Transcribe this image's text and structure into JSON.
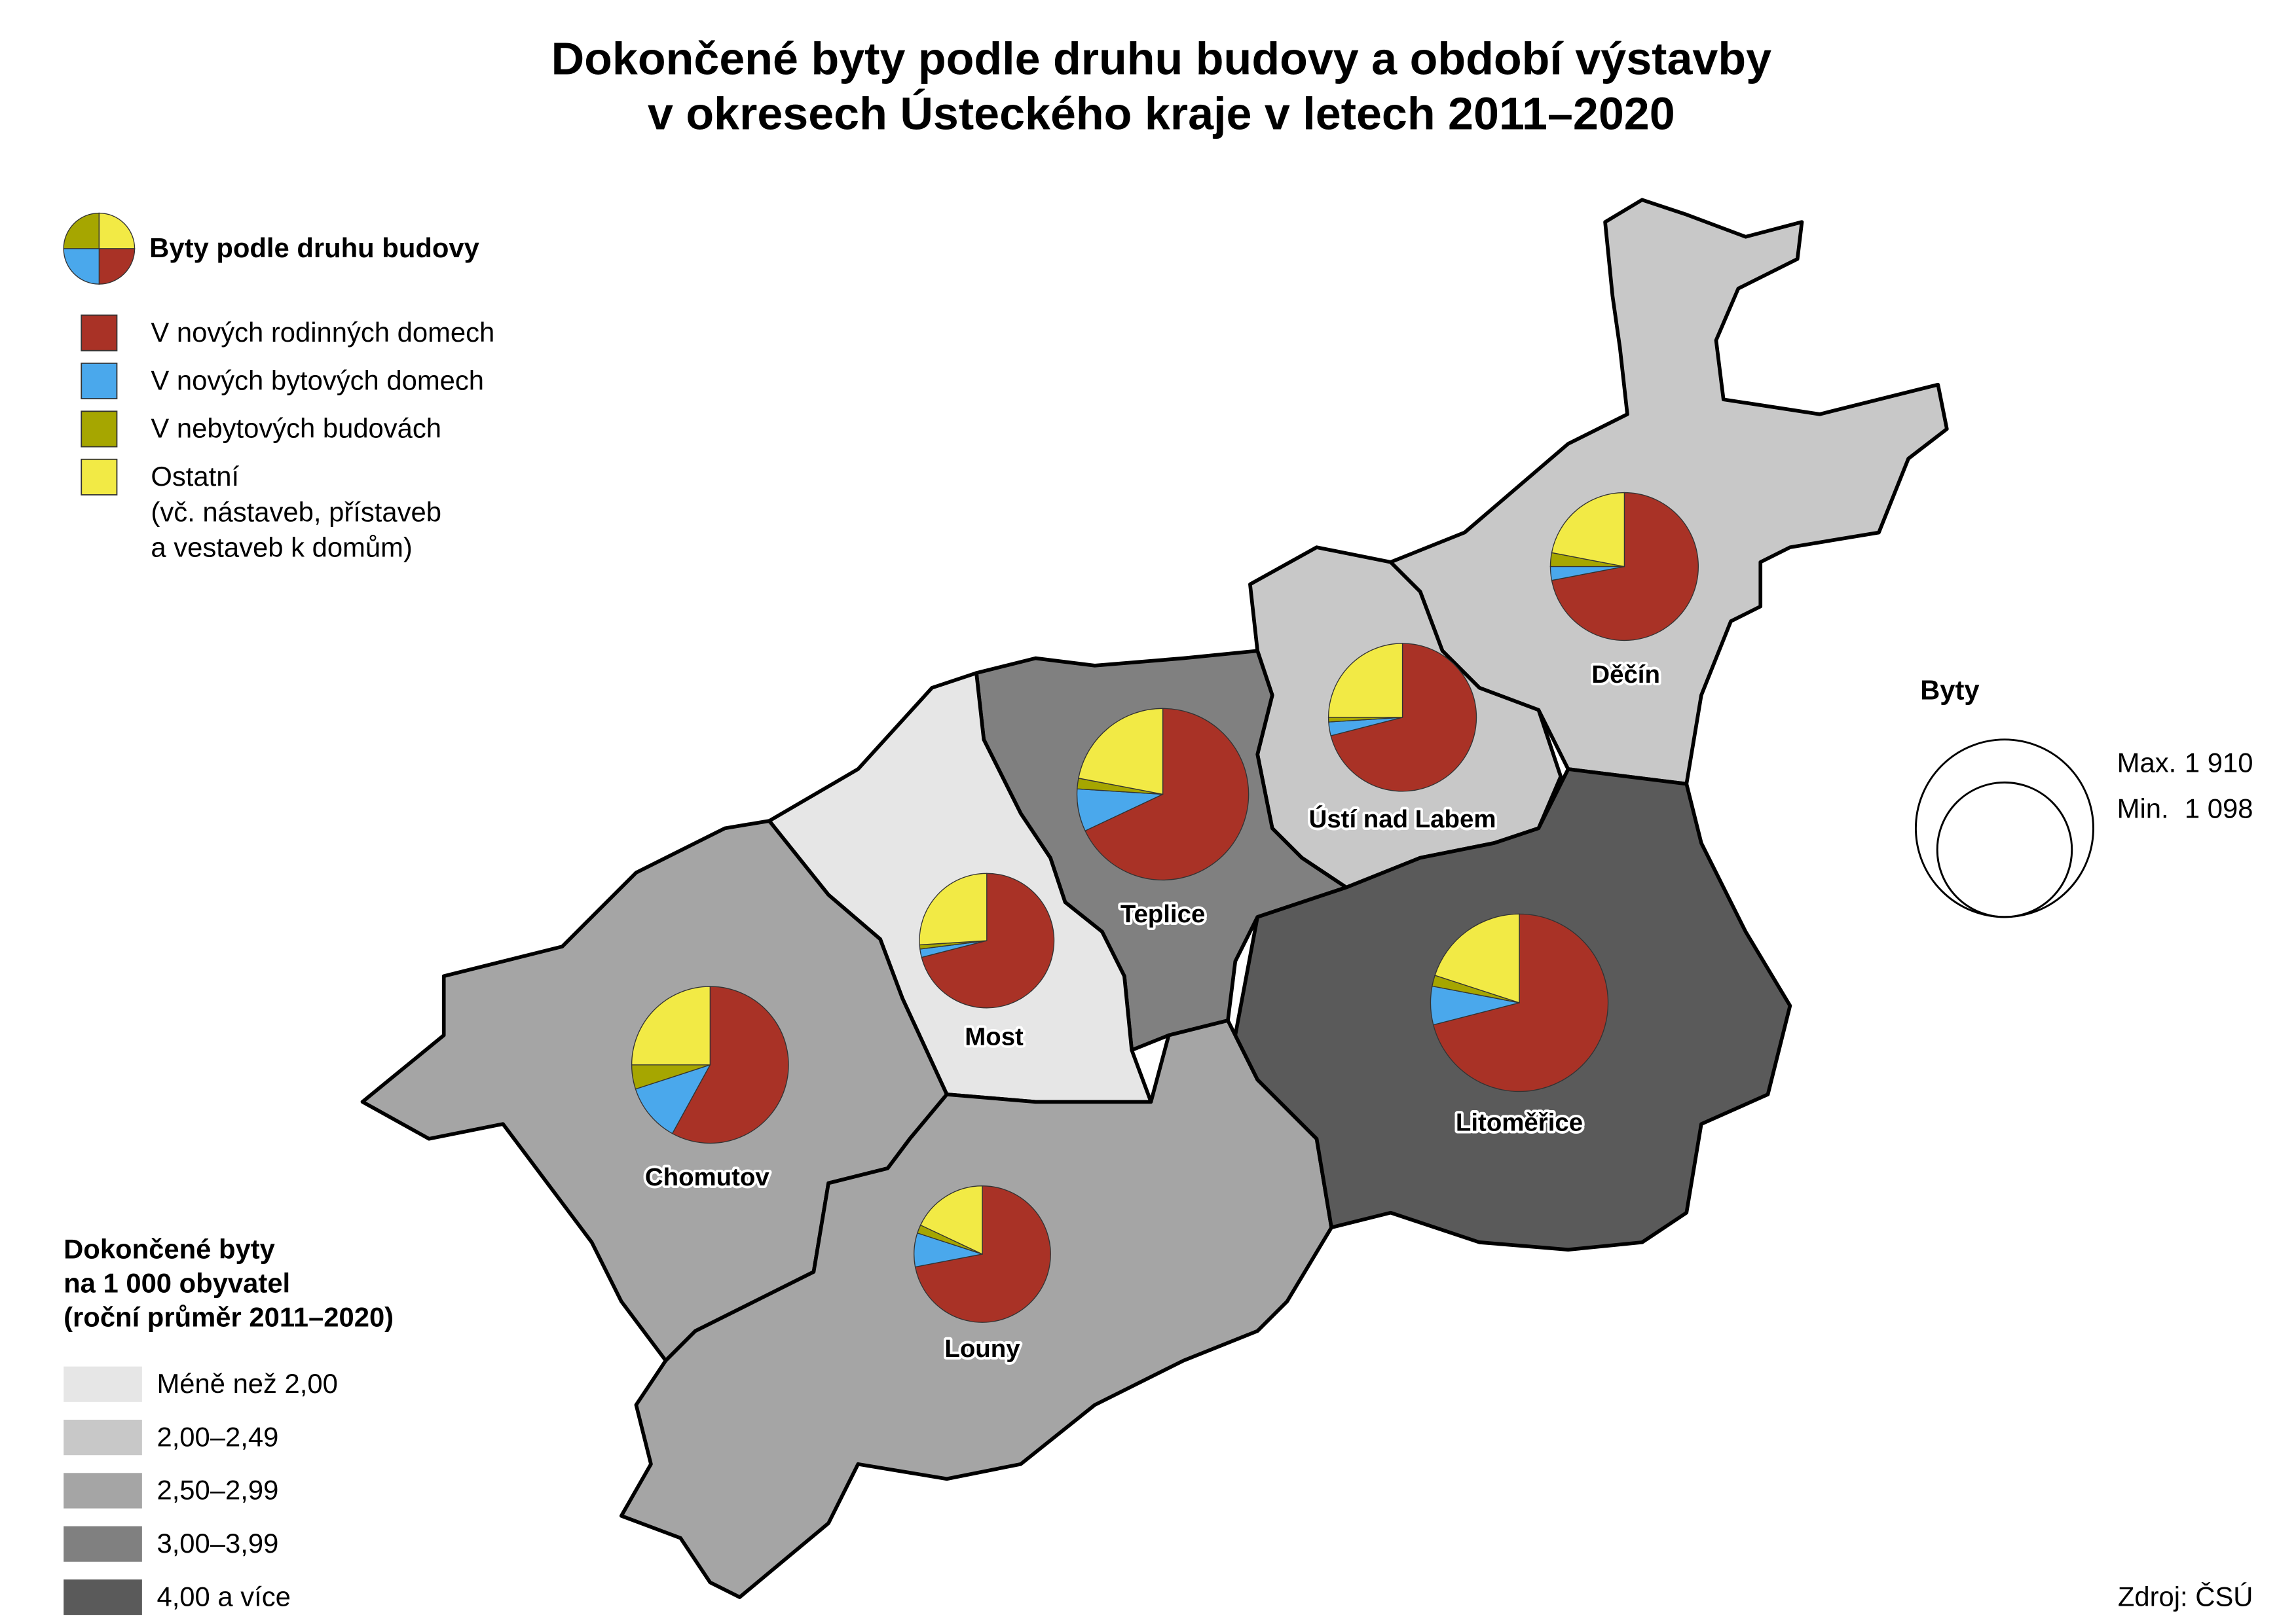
{
  "title": [
    "Dokončené byty podle druhu budovy a období výstavby",
    "v okresech Ústeckého kraje v letech 2011–2020"
  ],
  "pie_legend": {
    "title": "Byty podle druhu budovy",
    "series": [
      {
        "name": "V nových rodinných domech",
        "color": "#a93226"
      },
      {
        "name": "V nových bytových domech",
        "color": "#4aa8ec"
      },
      {
        "name": "V nebytových budovách",
        "color": "#a6a600"
      },
      {
        "name": "Ostatní",
        "color": "#f2ea45",
        "note": [
          "(vč. nástaveb, přístaveb",
          "a vestaveb k domům)"
        ]
      }
    ]
  },
  "size_legend": {
    "title": "Byty",
    "max_label": "Max.",
    "max": {
      "value": 1910,
      "label": "1 910"
    },
    "min_label": "Min.",
    "min": {
      "value": 1098,
      "label": "1 098"
    }
  },
  "choropleth_legend": {
    "title": [
      "Dokončené byty",
      "na 1 000 obyvatel",
      "(roční průměr 2011–2020)"
    ],
    "classes": [
      {
        "label": "Méně než 2,00",
        "color": "#e6e6e6"
      },
      {
        "label": "2,00–2,49",
        "color": "#c8c8c8"
      },
      {
        "label": "2,50–2,99",
        "color": "#a5a5a5"
      },
      {
        "label": "3,00–3,99",
        "color": "#808080"
      },
      {
        "label": "4,00 a více",
        "color": "#5a5a5a"
      }
    ]
  },
  "districts": [
    {
      "name": "Děčín",
      "class": 1,
      "total": 1326,
      "values": [
        72,
        3,
        3,
        22
      ]
    },
    {
      "name": "Ústí nad Labem",
      "class": 1,
      "total": 1326,
      "values": [
        71,
        3,
        1,
        25
      ]
    },
    {
      "name": "Teplice",
      "class": 3,
      "total": 1785,
      "values": [
        68,
        8,
        2,
        22
      ]
    },
    {
      "name": "Most",
      "class": 0,
      "total": 1098,
      "values": [
        71,
        2,
        1,
        26
      ]
    },
    {
      "name": "Chomutov",
      "class": 2,
      "total": 1490,
      "values": [
        58,
        12,
        5,
        25
      ]
    },
    {
      "name": "Louny",
      "class": 2,
      "total": 1130,
      "values": [
        72,
        8,
        2,
        18
      ]
    },
    {
      "name": "Litoměřice",
      "class": 4,
      "total": 1910,
      "values": [
        71,
        7,
        2,
        20
      ]
    }
  ],
  "source": "Zdroj: ČSÚ"
}
